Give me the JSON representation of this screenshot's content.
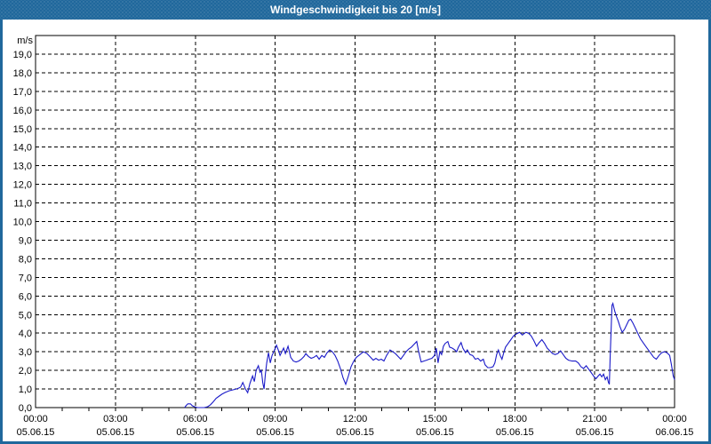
{
  "window": {
    "title": "Windgeschwindigkeit bis 20 [m/s]"
  },
  "colors": {
    "frame": "#20689c",
    "title_text": "#ffffff",
    "plot_background": "#ffffff",
    "grid": "#000000",
    "axis_text": "#000000",
    "line": "#1a1ac8"
  },
  "chart_data": {
    "type": "line",
    "title": "Windgeschwindigkeit bis 20 [m/s]",
    "unit_label": "m/s",
    "ylim": [
      0,
      20
    ],
    "ytick_step": 1.0,
    "ytick_labels": [
      "0,0",
      "1,0",
      "2,0",
      "3,0",
      "4,0",
      "5,0",
      "6,0",
      "7,0",
      "8,0",
      "9,0",
      "10,0",
      "11,0",
      "12,0",
      "13,0",
      "14,0",
      "15,0",
      "16,0",
      "17,0",
      "18,0",
      "19,0"
    ],
    "grid": "dashed-black",
    "legend": "none",
    "x_axis": {
      "range_minutes": [
        0,
        1440
      ],
      "minor_tick_minutes": 60,
      "grid_minutes": [
        180,
        360,
        540,
        720,
        900,
        1080,
        1260
      ],
      "ticks": [
        {
          "minute": 0,
          "time": "00:00",
          "date": "05.06.15"
        },
        {
          "minute": 180,
          "time": "03:00",
          "date": "05.06.15"
        },
        {
          "minute": 360,
          "time": "06:00",
          "date": "05.06.15"
        },
        {
          "minute": 540,
          "time": "09:00",
          "date": "05.06.15"
        },
        {
          "minute": 720,
          "time": "12:00",
          "date": "05.06.15"
        },
        {
          "minute": 900,
          "time": "15:00",
          "date": "05.06.15"
        },
        {
          "minute": 1080,
          "time": "18:00",
          "date": "05.06.15"
        },
        {
          "minute": 1260,
          "time": "21:00",
          "date": "05.06.15"
        },
        {
          "minute": 1440,
          "time": "00:00",
          "date": "06.06.15"
        }
      ]
    },
    "series": [
      {
        "name": "Windgeschwindigkeit",
        "color": "#1a1ac8",
        "points": [
          [
            336,
            0.0
          ],
          [
            339,
            0.1
          ],
          [
            343,
            0.2
          ],
          [
            349,
            0.2
          ],
          [
            353,
            0.1
          ],
          [
            358,
            0.05
          ],
          [
            365,
            0.0
          ],
          [
            380,
            0.0
          ],
          [
            388,
            0.05
          ],
          [
            394,
            0.15
          ],
          [
            400,
            0.3
          ],
          [
            407,
            0.5
          ],
          [
            414,
            0.62
          ],
          [
            420,
            0.72
          ],
          [
            428,
            0.82
          ],
          [
            436,
            0.9
          ],
          [
            444,
            0.95
          ],
          [
            452,
            1.0
          ],
          [
            458,
            1.05
          ],
          [
            462,
            1.1
          ],
          [
            467,
            1.35
          ],
          [
            473,
            1.0
          ],
          [
            478,
            0.8
          ],
          [
            483,
            1.3
          ],
          [
            489,
            1.7
          ],
          [
            493,
            1.4
          ],
          [
            497,
            2.0
          ],
          [
            502,
            2.25
          ],
          [
            506,
            1.9
          ],
          [
            509,
            2.0
          ],
          [
            512,
            1.35
          ],
          [
            515,
            1.0
          ],
          [
            518,
            1.8
          ],
          [
            521,
            2.4
          ],
          [
            525,
            2.95
          ],
          [
            529,
            2.4
          ],
          [
            533,
            2.8
          ],
          [
            537,
            3.0
          ],
          [
            543,
            3.35
          ],
          [
            547,
            3.1
          ],
          [
            551,
            2.8
          ],
          [
            555,
            3.0
          ],
          [
            559,
            3.2
          ],
          [
            563,
            2.9
          ],
          [
            569,
            3.3
          ],
          [
            575,
            2.7
          ],
          [
            581,
            2.5
          ],
          [
            587,
            2.45
          ],
          [
            593,
            2.5
          ],
          [
            599,
            2.6
          ],
          [
            605,
            2.75
          ],
          [
            609,
            2.9
          ],
          [
            615,
            2.75
          ],
          [
            621,
            2.65
          ],
          [
            627,
            2.7
          ],
          [
            633,
            2.8
          ],
          [
            639,
            2.6
          ],
          [
            645,
            2.8
          ],
          [
            651,
            2.7
          ],
          [
            657,
            2.95
          ],
          [
            663,
            3.1
          ],
          [
            669,
            3.0
          ],
          [
            675,
            2.8
          ],
          [
            681,
            2.5
          ],
          [
            687,
            2.1
          ],
          [
            693,
            1.6
          ],
          [
            699,
            1.25
          ],
          [
            705,
            1.7
          ],
          [
            711,
            2.2
          ],
          [
            717,
            2.5
          ],
          [
            723,
            2.7
          ],
          [
            731,
            2.85
          ],
          [
            739,
            3.0
          ],
          [
            747,
            2.9
          ],
          [
            755,
            2.7
          ],
          [
            761,
            2.55
          ],
          [
            767,
            2.65
          ],
          [
            773,
            2.55
          ],
          [
            779,
            2.6
          ],
          [
            785,
            2.5
          ],
          [
            791,
            2.8
          ],
          [
            799,
            3.1
          ],
          [
            805,
            3.0
          ],
          [
            811,
            2.9
          ],
          [
            817,
            2.75
          ],
          [
            823,
            2.6
          ],
          [
            829,
            2.8
          ],
          [
            835,
            3.0
          ],
          [
            841,
            3.15
          ],
          [
            847,
            3.25
          ],
          [
            853,
            3.4
          ],
          [
            859,
            3.55
          ],
          [
            863,
            3.05
          ],
          [
            869,
            2.45
          ],
          [
            875,
            2.5
          ],
          [
            881,
            2.55
          ],
          [
            887,
            2.6
          ],
          [
            893,
            2.65
          ],
          [
            899,
            2.8
          ],
          [
            903,
            3.2
          ],
          [
            907,
            2.4
          ],
          [
            911,
            3.0
          ],
          [
            915,
            2.85
          ],
          [
            919,
            3.3
          ],
          [
            923,
            3.45
          ],
          [
            929,
            3.55
          ],
          [
            933,
            3.25
          ],
          [
            939,
            3.2
          ],
          [
            945,
            3.1
          ],
          [
            949,
            3.0
          ],
          [
            953,
            3.25
          ],
          [
            959,
            3.5
          ],
          [
            963,
            3.2
          ],
          [
            969,
            2.95
          ],
          [
            973,
            3.1
          ],
          [
            979,
            2.85
          ],
          [
            985,
            2.8
          ],
          [
            991,
            2.6
          ],
          [
            997,
            2.65
          ],
          [
            1003,
            2.5
          ],
          [
            1009,
            2.6
          ],
          [
            1013,
            2.3
          ],
          [
            1019,
            2.15
          ],
          [
            1025,
            2.15
          ],
          [
            1031,
            2.2
          ],
          [
            1035,
            2.4
          ],
          [
            1039,
            2.85
          ],
          [
            1043,
            3.1
          ],
          [
            1047,
            2.8
          ],
          [
            1051,
            2.6
          ],
          [
            1055,
            2.95
          ],
          [
            1059,
            3.25
          ],
          [
            1065,
            3.45
          ],
          [
            1071,
            3.65
          ],
          [
            1077,
            3.85
          ],
          [
            1083,
            3.95
          ],
          [
            1091,
            4.05
          ],
          [
            1097,
            3.9
          ],
          [
            1105,
            4.05
          ],
          [
            1111,
            4.0
          ],
          [
            1117,
            3.85
          ],
          [
            1123,
            3.6
          ],
          [
            1129,
            3.3
          ],
          [
            1135,
            3.5
          ],
          [
            1141,
            3.65
          ],
          [
            1147,
            3.45
          ],
          [
            1153,
            3.2
          ],
          [
            1159,
            3.05
          ],
          [
            1165,
            2.9
          ],
          [
            1171,
            2.85
          ],
          [
            1177,
            2.9
          ],
          [
            1183,
            3.05
          ],
          [
            1189,
            2.85
          ],
          [
            1195,
            2.65
          ],
          [
            1201,
            2.55
          ],
          [
            1209,
            2.5
          ],
          [
            1217,
            2.5
          ],
          [
            1223,
            2.4
          ],
          [
            1229,
            2.2
          ],
          [
            1235,
            2.1
          ],
          [
            1241,
            2.25
          ],
          [
            1247,
            2.05
          ],
          [
            1253,
            1.85
          ],
          [
            1258,
            1.68
          ],
          [
            1263,
            1.55
          ],
          [
            1268,
            1.7
          ],
          [
            1272,
            1.8
          ],
          [
            1276,
            1.65
          ],
          [
            1280,
            1.8
          ],
          [
            1284,
            1.5
          ],
          [
            1288,
            1.65
          ],
          [
            1291,
            1.35
          ],
          [
            1293,
            1.25
          ],
          [
            1295,
            2.8
          ],
          [
            1299,
            5.5
          ],
          [
            1301,
            5.6
          ],
          [
            1305,
            5.2
          ],
          [
            1309,
            4.9
          ],
          [
            1313,
            4.65
          ],
          [
            1317,
            4.35
          ],
          [
            1322,
            4.05
          ],
          [
            1327,
            4.2
          ],
          [
            1332,
            4.45
          ],
          [
            1337,
            4.7
          ],
          [
            1341,
            4.75
          ],
          [
            1346,
            4.55
          ],
          [
            1351,
            4.3
          ],
          [
            1355,
            4.1
          ],
          [
            1359,
            3.9
          ],
          [
            1363,
            3.7
          ],
          [
            1369,
            3.5
          ],
          [
            1375,
            3.3
          ],
          [
            1381,
            3.1
          ],
          [
            1387,
            2.9
          ],
          [
            1393,
            2.7
          ],
          [
            1399,
            2.6
          ],
          [
            1405,
            2.8
          ],
          [
            1411,
            2.95
          ],
          [
            1417,
            3.0
          ],
          [
            1423,
            2.95
          ],
          [
            1429,
            2.8
          ],
          [
            1433,
            2.3
          ],
          [
            1437,
            1.7
          ],
          [
            1440,
            1.5
          ]
        ]
      }
    ]
  }
}
